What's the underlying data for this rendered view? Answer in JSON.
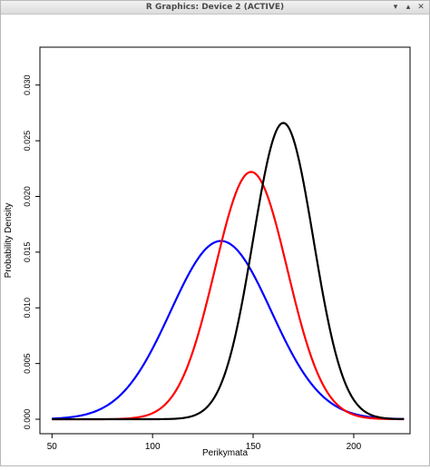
{
  "window": {
    "title": "R Graphics: Device 2 (ACTIVE)",
    "controls": [
      "▾",
      "▴",
      "✕"
    ]
  },
  "chart_data": {
    "type": "line",
    "xlabel": "Perikymata",
    "ylabel": "Probability Density",
    "xlim": [
      44,
      228
    ],
    "ylim": [
      -0.0013,
      0.0334
    ],
    "xticks": [
      50,
      100,
      150,
      200
    ],
    "yticks": [
      0.0,
      0.005,
      0.01,
      0.015,
      0.02,
      0.025,
      0.03
    ],
    "ytick_labels": [
      "0.000",
      "0.005",
      "0.010",
      "0.015",
      "0.020",
      "0.025",
      "0.030"
    ],
    "x_range": [
      50,
      225
    ],
    "series": [
      {
        "color": "#0000ff",
        "mean": 134,
        "sd": 25,
        "peak": 0.016
      },
      {
        "color": "#ff0000",
        "mean": 149,
        "sd": 18,
        "peak": 0.0222
      },
      {
        "color": "#000000",
        "mean": 165,
        "sd": 15,
        "peak": 0.0266
      }
    ],
    "grid": false,
    "legend": "none"
  }
}
